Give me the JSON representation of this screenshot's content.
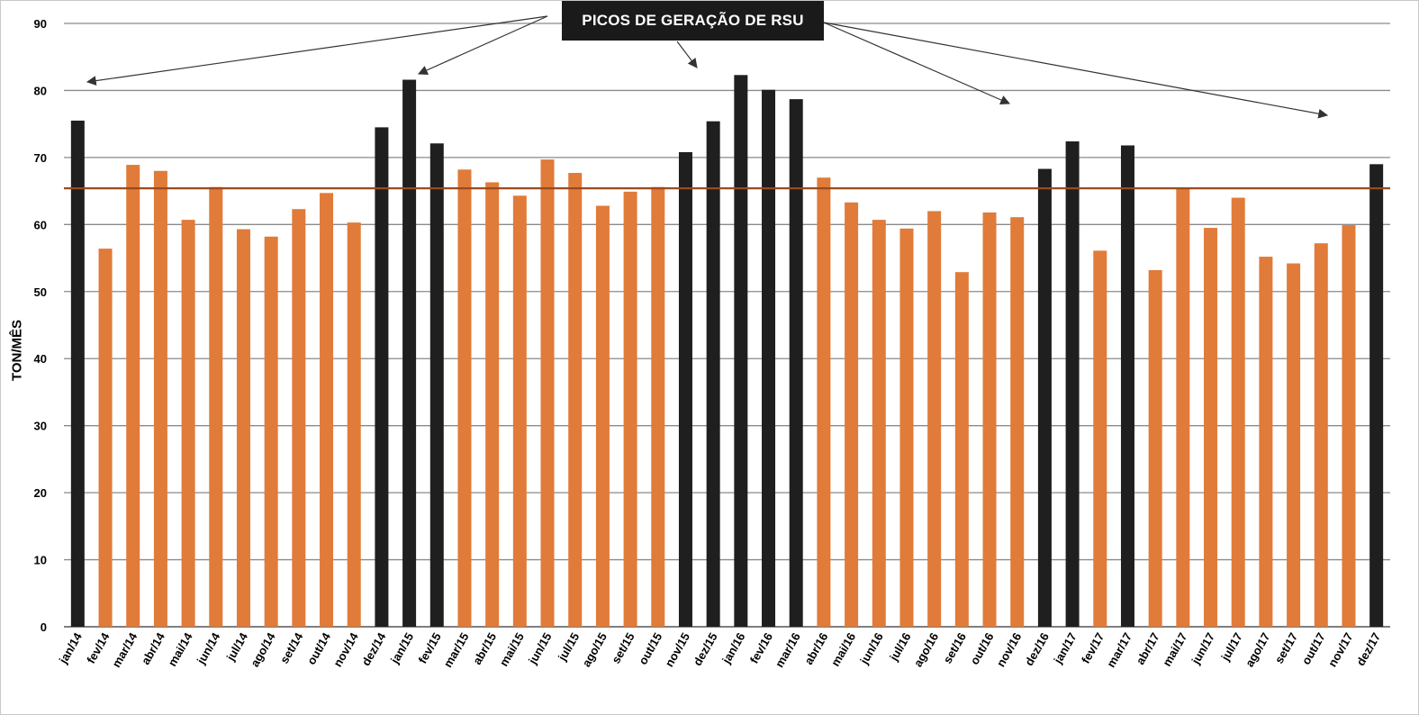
{
  "chart_data": {
    "type": "bar",
    "ylabel": "TON/MÊS",
    "ylim": [
      0,
      90
    ],
    "yticks": [
      0,
      10,
      20,
      30,
      40,
      50,
      60,
      70,
      80,
      90
    ],
    "grid": true,
    "categories": [
      "jan/14",
      "fev/14",
      "mar/14",
      "abr/14",
      "mai/14",
      "jun/14",
      "jul/14",
      "ago/14",
      "set/14",
      "out/14",
      "nov/14",
      "dez/14",
      "jan/15",
      "fev/15",
      "mar/15",
      "abr/15",
      "mai/15",
      "jun/15",
      "jul/15",
      "ago/15",
      "set/15",
      "out/15",
      "nov/15",
      "dez/15",
      "jan/16",
      "fev/16",
      "mar/16",
      "abr/16",
      "mai/16",
      "jun/16",
      "jul/16",
      "ago/16",
      "set/16",
      "out/16",
      "nov/16",
      "dez/16",
      "jan/17",
      "fev/17",
      "mar/17",
      "abr/17",
      "mai/17",
      "jun/17",
      "jul/17",
      "ago/17",
      "set/17",
      "out/17",
      "nov/17",
      "dez/17"
    ],
    "values": [
      75.5,
      56.4,
      68.9,
      68.0,
      60.7,
      65.6,
      59.3,
      58.2,
      62.3,
      64.7,
      60.3,
      74.5,
      81.6,
      72.1,
      68.2,
      66.3,
      64.3,
      69.7,
      67.7,
      62.8,
      64.9,
      65.6,
      70.8,
      75.4,
      82.3,
      80.1,
      78.7,
      67.0,
      63.3,
      60.7,
      59.4,
      62.0,
      52.9,
      61.8,
      61.1,
      68.3,
      72.4,
      56.1,
      71.8,
      53.2,
      65.5,
      59.5,
      64.0,
      55.2,
      54.2,
      57.2,
      59.9,
      69.0
    ],
    "peak_indices": [
      0,
      11,
      12,
      13,
      22,
      23,
      24,
      25,
      26,
      35,
      36,
      38,
      47
    ],
    "average_line": 65.4,
    "annotation": "PICOS DE GERAÇÃO DE RSU",
    "colors": {
      "peak": "#1f1f1f",
      "normal": "#e07b39",
      "average": "#9b4a1e",
      "grid": "#8a8a8a",
      "arrow": "#333333"
    }
  }
}
